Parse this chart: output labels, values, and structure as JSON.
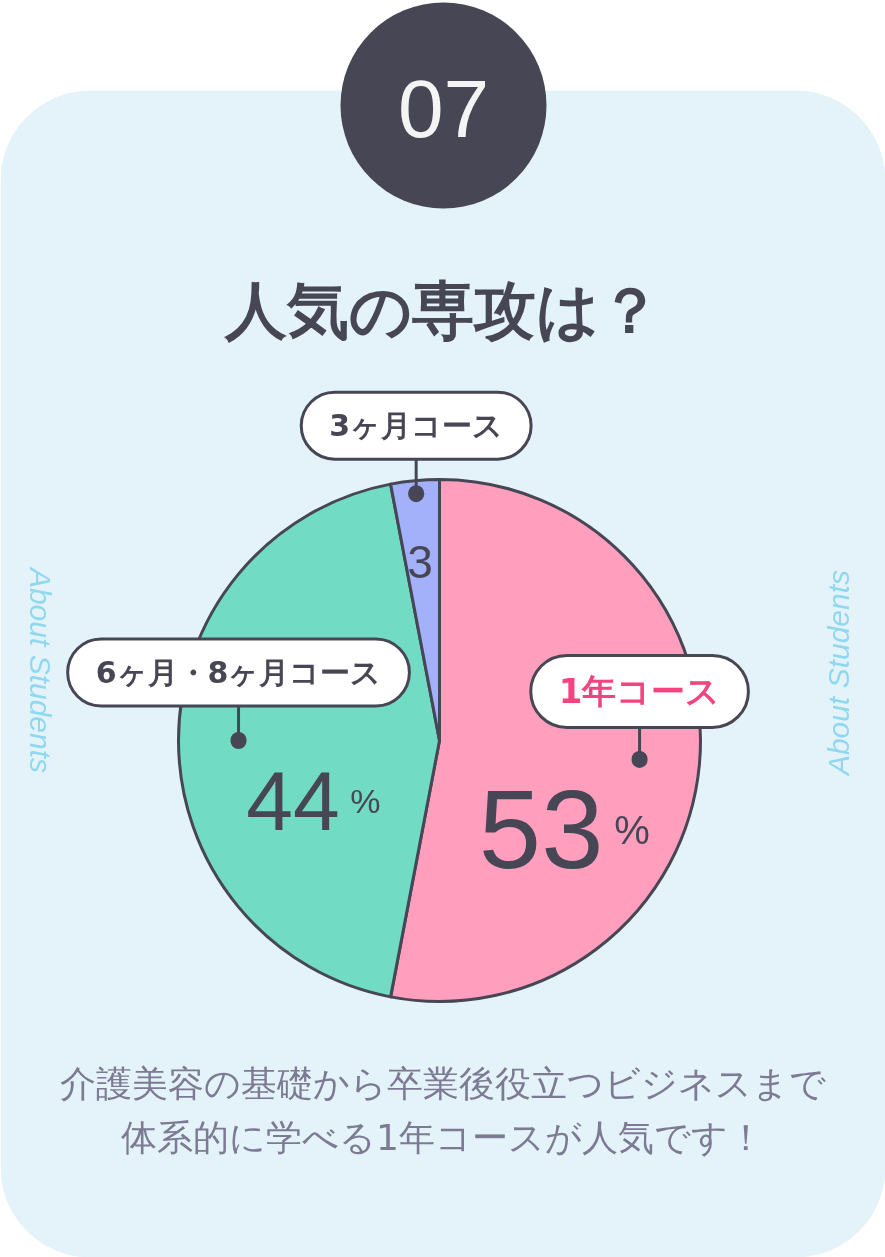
{
  "chart_data": {
    "type": "pie",
    "title": "人気の専攻は？",
    "categories": [
      "1年コース",
      "6ヶ月・8ヶ月コース",
      "3ヶ月コース"
    ],
    "values": [
      53,
      44,
      3
    ],
    "colors": [
      "#ff9fbd",
      "#72dbc3",
      "#a3b1fb"
    ],
    "value_labels": [
      "53%",
      "44%",
      "3"
    ],
    "annotations": [
      "07",
      "About Students",
      "About Students",
      "介護美容の基礎から卒業後役立つビジネスまで体系的に学べる1年コースが人気です！"
    ]
  }
}
